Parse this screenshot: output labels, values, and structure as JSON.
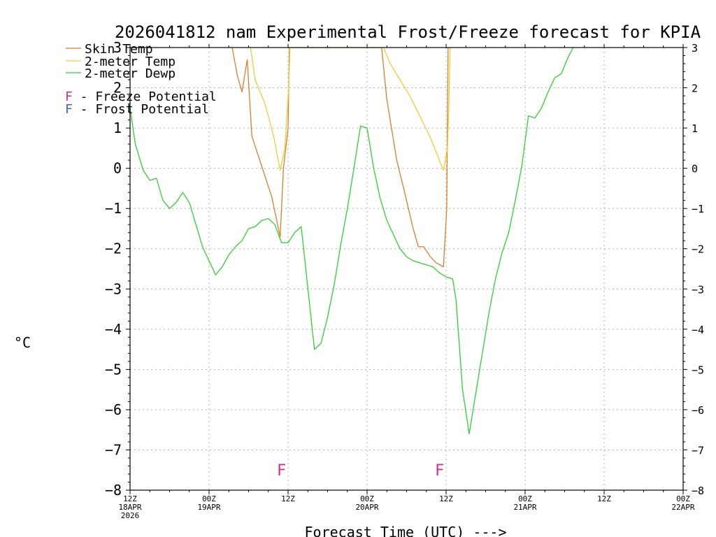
{
  "chart_data": {
    "type": "line",
    "title": "2026041812 nam Experimental Frost/Freeze forecast for KPIA",
    "xlabel": "Forecast Time (UTC) --->",
    "ylabel": "°C",
    "ylim": [
      -8,
      3
    ],
    "xlim": [
      0,
      84
    ],
    "yticks": [
      -8,
      -7,
      -6,
      -5,
      -4,
      -3,
      -2,
      -1,
      0,
      1,
      2,
      3
    ],
    "xticks": [
      {
        "x": 0,
        "lines": [
          "12Z",
          "18APR",
          "2026"
        ]
      },
      {
        "x": 12,
        "lines": [
          "00Z",
          "19APR"
        ]
      },
      {
        "x": 24,
        "lines": [
          "12Z"
        ]
      },
      {
        "x": 36,
        "lines": [
          "00Z",
          "20APR"
        ]
      },
      {
        "x": 48,
        "lines": [
          "12Z"
        ]
      },
      {
        "x": 60,
        "lines": [
          "00Z",
          "21APR"
        ]
      },
      {
        "x": 72,
        "lines": [
          "12Z"
        ]
      },
      {
        "x": 84,
        "lines": [
          "00Z",
          "22APR"
        ]
      }
    ],
    "grid": true,
    "series": [
      {
        "name": "Skin Temp",
        "color": "#e07b28",
        "points": [
          [
            15.5,
            3.0
          ],
          [
            16.3,
            2.3
          ],
          [
            17.0,
            1.9
          ],
          [
            17.8,
            2.7
          ],
          [
            18.5,
            0.8
          ],
          [
            20.5,
            -0.2
          ],
          [
            21.5,
            -0.7
          ],
          [
            22.8,
            -1.7
          ],
          [
            23.3,
            0.0
          ],
          [
            24.0,
            1.0
          ],
          [
            24.2,
            3.0
          ],
          [
            38.2,
            3.0
          ],
          [
            39.0,
            1.7
          ],
          [
            40.5,
            0.2
          ],
          [
            41.7,
            -0.6
          ],
          [
            43.0,
            -1.5
          ],
          [
            43.8,
            -1.95
          ],
          [
            44.6,
            -1.95
          ],
          [
            45.6,
            -2.2
          ],
          [
            46.5,
            -2.35
          ],
          [
            47.6,
            -2.45
          ],
          [
            48.1,
            -1.0
          ],
          [
            48.3,
            3.0
          ]
        ]
      },
      {
        "name": "2-meter Temp",
        "color": "#e6d03a",
        "points": [
          [
            18.3,
            3.0
          ],
          [
            19.0,
            2.2
          ],
          [
            20.5,
            1.6
          ],
          [
            21.8,
            0.8
          ],
          [
            22.8,
            -0.05
          ],
          [
            23.5,
            0.5
          ],
          [
            24.1,
            2.0
          ],
          [
            24.3,
            3.0
          ],
          [
            38.5,
            3.0
          ],
          [
            39.5,
            2.6
          ],
          [
            41.0,
            2.2
          ],
          [
            42.5,
            1.8
          ],
          [
            44.0,
            1.3
          ],
          [
            45.5,
            0.8
          ],
          [
            46.5,
            0.4
          ],
          [
            47.6,
            -0.05
          ],
          [
            48.2,
            0.5
          ],
          [
            48.4,
            1.5
          ],
          [
            48.6,
            3.0
          ]
        ]
      },
      {
        "name": "2-meter Dewp",
        "color": "#2ed12e",
        "points": [
          [
            0,
            1.5
          ],
          [
            0.8,
            0.6
          ],
          [
            2.0,
            -0.05
          ],
          [
            3.0,
            -0.3
          ],
          [
            4.0,
            -0.25
          ],
          [
            5.0,
            -0.8
          ],
          [
            6.0,
            -1.0
          ],
          [
            7.0,
            -0.85
          ],
          [
            8.0,
            -0.6
          ],
          [
            9.0,
            -0.85
          ],
          [
            10.0,
            -1.4
          ],
          [
            11.0,
            -1.95
          ],
          [
            12.0,
            -2.3
          ],
          [
            13.0,
            -2.65
          ],
          [
            14.0,
            -2.45
          ],
          [
            15.0,
            -2.15
          ],
          [
            16.0,
            -1.95
          ],
          [
            17.0,
            -1.8
          ],
          [
            18.0,
            -1.5
          ],
          [
            19.0,
            -1.45
          ],
          [
            20.0,
            -1.3
          ],
          [
            21.0,
            -1.25
          ],
          [
            22.0,
            -1.4
          ],
          [
            23.0,
            -1.85
          ],
          [
            24.0,
            -1.85
          ],
          [
            25.0,
            -1.6
          ],
          [
            26.0,
            -1.45
          ],
          [
            28.0,
            -4.5
          ],
          [
            29.0,
            -4.35
          ],
          [
            30.0,
            -3.7
          ],
          [
            31.0,
            -2.9
          ],
          [
            32.0,
            -1.9
          ],
          [
            33.0,
            -1.0
          ],
          [
            34.0,
            0.0
          ],
          [
            35.0,
            1.05
          ],
          [
            36.0,
            1.0
          ],
          [
            37.0,
            0.0
          ],
          [
            38.0,
            -0.75
          ],
          [
            39.0,
            -1.3
          ],
          [
            40.0,
            -1.65
          ],
          [
            41.0,
            -2.0
          ],
          [
            42.0,
            -2.2
          ],
          [
            43.0,
            -2.3
          ],
          [
            44.0,
            -2.35
          ],
          [
            45.0,
            -2.4
          ],
          [
            46.0,
            -2.45
          ],
          [
            47.0,
            -2.6
          ],
          [
            48.0,
            -2.7
          ],
          [
            49.0,
            -2.75
          ],
          [
            49.5,
            -3.25
          ],
          [
            50.5,
            -5.5
          ],
          [
            51.5,
            -6.6
          ],
          [
            52.5,
            -5.6
          ],
          [
            53.5,
            -4.6
          ],
          [
            54.5,
            -3.6
          ],
          [
            55.5,
            -2.75
          ],
          [
            56.5,
            -2.1
          ],
          [
            57.5,
            -1.6
          ],
          [
            58.5,
            -0.8
          ],
          [
            59.5,
            0.05
          ],
          [
            60.5,
            1.3
          ],
          [
            61.5,
            1.25
          ],
          [
            62.5,
            1.5
          ],
          [
            63.5,
            1.9
          ],
          [
            64.5,
            2.25
          ],
          [
            65.5,
            2.35
          ],
          [
            66.5,
            2.75
          ],
          [
            67.3,
            3.0
          ]
        ]
      }
    ],
    "markers": [
      {
        "label": "F",
        "x": 23.0,
        "y": -7.5,
        "kind": "Freeze Potential",
        "color": "#d12f8f"
      },
      {
        "label": "F",
        "x": 47.0,
        "y": -7.5,
        "kind": "Freeze Potential",
        "color": "#d12f8f"
      }
    ],
    "legend": {
      "position": "top-left",
      "entries": [
        {
          "text": "Skin Temp",
          "color": "#e07b28"
        },
        {
          "text": "2-meter Temp",
          "color": "#e6d03a"
        },
        {
          "text": "2-meter Dewp",
          "color": "#2ed12e"
        }
      ],
      "notes": [
        {
          "symbol": "F",
          "text": " - Freeze Potential",
          "color": "#d12f8f"
        },
        {
          "symbol": "F",
          "text": " - Frost Potential",
          "color": "#4a5ee0"
        }
      ]
    }
  }
}
